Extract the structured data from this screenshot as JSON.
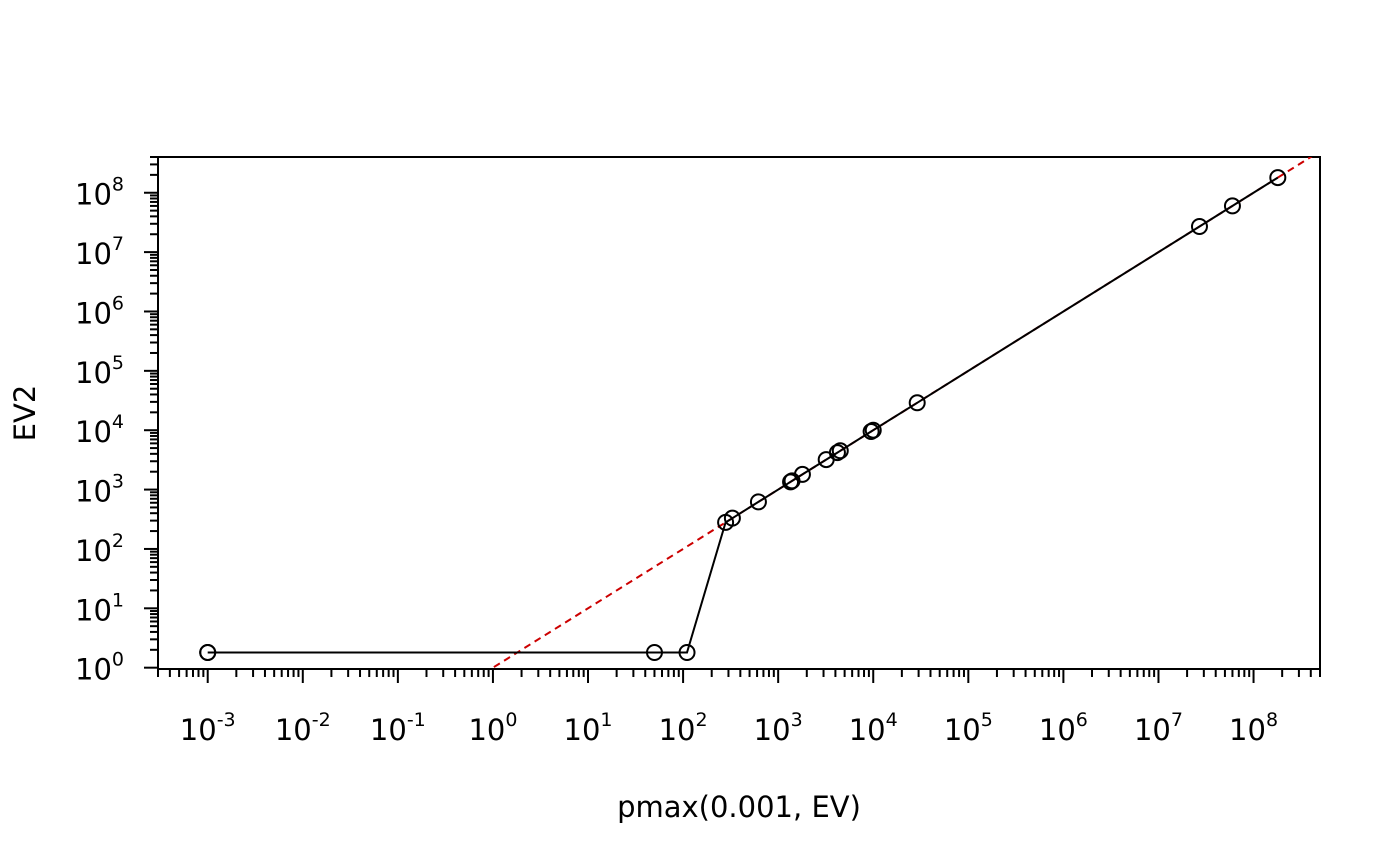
{
  "chart_data": {
    "type": "line",
    "x_scale": "log",
    "y_scale": "log",
    "xlabel": "pmax(0.001, EV)",
    "ylabel": "EV2",
    "xlim": [
      0.0003,
      500000000
    ],
    "ylim": [
      0.95,
      400000000
    ],
    "x_ticks": [
      {
        "base": "10",
        "exp": "-3",
        "value": 0.001
      },
      {
        "base": "10",
        "exp": "-2",
        "value": 0.01
      },
      {
        "base": "10",
        "exp": "-1",
        "value": 0.1
      },
      {
        "base": "10",
        "exp": "0",
        "value": 1
      },
      {
        "base": "10",
        "exp": "1",
        "value": 10
      },
      {
        "base": "10",
        "exp": "2",
        "value": 100
      },
      {
        "base": "10",
        "exp": "3",
        "value": 1000
      },
      {
        "base": "10",
        "exp": "4",
        "value": 10000
      },
      {
        "base": "10",
        "exp": "5",
        "value": 100000
      },
      {
        "base": "10",
        "exp": "6",
        "value": 1000000
      },
      {
        "base": "10",
        "exp": "7",
        "value": 10000000
      },
      {
        "base": "10",
        "exp": "8",
        "value": 100000000
      }
    ],
    "y_ticks": [
      {
        "base": "10",
        "exp": "0",
        "value": 1
      },
      {
        "base": "10",
        "exp": "1",
        "value": 10
      },
      {
        "base": "10",
        "exp": "2",
        "value": 100
      },
      {
        "base": "10",
        "exp": "3",
        "value": 1000
      },
      {
        "base": "10",
        "exp": "4",
        "value": 10000
      },
      {
        "base": "10",
        "exp": "5",
        "value": 100000
      },
      {
        "base": "10",
        "exp": "6",
        "value": 1000000
      },
      {
        "base": "10",
        "exp": "7",
        "value": 10000000
      },
      {
        "base": "10",
        "exp": "8",
        "value": 100000000
      }
    ],
    "series": [
      {
        "style": "line-with-open-circles",
        "color": "#000000",
        "points": [
          {
            "x": 0.001,
            "y": 1.8
          },
          {
            "x": 0.001,
            "y": 1.8
          },
          {
            "x": 50,
            "y": 1.8
          },
          {
            "x": 110,
            "y": 1.8
          },
          {
            "x": 280,
            "y": 280
          },
          {
            "x": 330,
            "y": 330
          },
          {
            "x": 620,
            "y": 620
          },
          {
            "x": 1350,
            "y": 1350
          },
          {
            "x": 1400,
            "y": 1400
          },
          {
            "x": 1800,
            "y": 1800
          },
          {
            "x": 3200,
            "y": 3200
          },
          {
            "x": 4200,
            "y": 4200
          },
          {
            "x": 4500,
            "y": 4500
          },
          {
            "x": 9500,
            "y": 9500
          },
          {
            "x": 10000,
            "y": 10000
          },
          {
            "x": 29000,
            "y": 29000
          },
          {
            "x": 27000000,
            "y": 27000000
          },
          {
            "x": 60000000,
            "y": 60000000
          },
          {
            "x": 180000000,
            "y": 180000000
          }
        ]
      },
      {
        "style": "dashed-line",
        "color": "#cc0000",
        "line": {
          "slope": 1,
          "intercept": 0
        }
      }
    ]
  }
}
